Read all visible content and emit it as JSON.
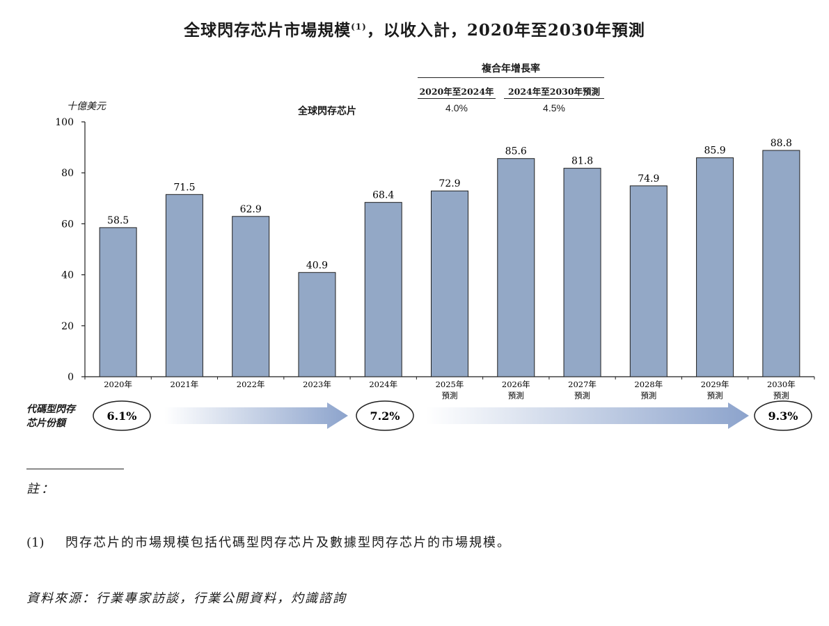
{
  "title": "全球閃存芯片市場規模",
  "title_note": "(1)",
  "title_suffix": "，以收入計，2020年至2030年預測",
  "unit_label": "十億美元",
  "series_label": "全球閃存芯片",
  "cagr": {
    "header": "複合年增長率",
    "columns": [
      {
        "period": "2020年至2024年",
        "value": "4.0%"
      },
      {
        "period": "2024年至2030年預測",
        "value": "4.5%"
      }
    ]
  },
  "share": {
    "label_line1": "代碼型閃存",
    "label_line2": "芯片份額",
    "values": [
      "6.1%",
      "7.2%",
      "9.3%"
    ]
  },
  "notes": {
    "heading": "註：",
    "items": [
      {
        "num": "(1)",
        "text": "閃存芯片的市場規模包括代碼型閃存芯片及數據型閃存芯片的市場規模。"
      }
    ]
  },
  "source": "資料來源：行業專家訪談，行業公開資料，灼識諮詢",
  "colors": {
    "bar": "#93a8c6",
    "bar_stroke": "#1f1f1f",
    "arrow": "#8ca3cc"
  },
  "chart_data": {
    "type": "bar",
    "title": "全球閃存芯片市場規模，以收入計，2020年至2030年預測",
    "ylabel": "十億美元",
    "ylim": [
      0,
      100
    ],
    "yticks": [
      0,
      20,
      40,
      60,
      80,
      100
    ],
    "categories": [
      [
        "2020年"
      ],
      [
        "2021年"
      ],
      [
        "2022年"
      ],
      [
        "2023年"
      ],
      [
        "2024年"
      ],
      [
        "2025年",
        "預測"
      ],
      [
        "2026年",
        "預測"
      ],
      [
        "2027年",
        "預測"
      ],
      [
        "2028年",
        "預測"
      ],
      [
        "2029年",
        "預測"
      ],
      [
        "2030年",
        "預測"
      ]
    ],
    "values": [
      58.5,
      71.5,
      62.9,
      40.9,
      68.4,
      72.9,
      85.6,
      81.8,
      74.9,
      85.9,
      88.8
    ],
    "value_labels": [
      "58.5",
      "71.5",
      "62.9",
      "40.9",
      "68.4",
      "72.9",
      "85.6",
      "81.8",
      "74.9",
      "85.9",
      "88.8"
    ]
  }
}
